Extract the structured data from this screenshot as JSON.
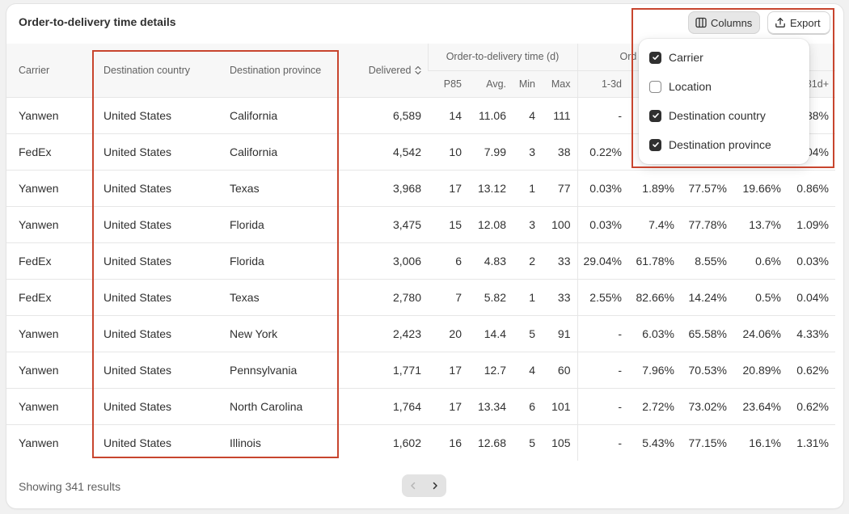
{
  "card": {
    "title": "Order-to-delivery time details"
  },
  "toolbar": {
    "columns_label": "Columns",
    "export_label": "Export"
  },
  "table": {
    "headers": {
      "carrier": "Carrier",
      "destination_country": "Destination country",
      "destination_province": "Destination province",
      "delivered": "Delivered",
      "o2d_group": "Order-to-delivery time (d)",
      "dist_group": "Ord",
      "p85": "P85",
      "avg": "Avg.",
      "min": "Min",
      "max": "Max",
      "b1": "1-3d",
      "b5": "31d+"
    },
    "rows": [
      [
        "Yanwen",
        "United States",
        "California",
        "6,589",
        "14",
        "11.06",
        "4",
        "111",
        "-",
        "",
        "",
        "",
        "38%"
      ],
      [
        "FedEx",
        "United States",
        "California",
        "4,542",
        "10",
        "7.99",
        "3",
        "38",
        "0.22%",
        "",
        "",
        "",
        "04%"
      ],
      [
        "Yanwen",
        "United States",
        "Texas",
        "3,968",
        "17",
        "13.12",
        "1",
        "77",
        "0.03%",
        "1.89%",
        "77.57%",
        "19.66%",
        "0.86%"
      ],
      [
        "Yanwen",
        "United States",
        "Florida",
        "3,475",
        "15",
        "12.08",
        "3",
        "100",
        "0.03%",
        "7.4%",
        "77.78%",
        "13.7%",
        "1.09%"
      ],
      [
        "FedEx",
        "United States",
        "Florida",
        "3,006",
        "6",
        "4.83",
        "2",
        "33",
        "29.04%",
        "61.78%",
        "8.55%",
        "0.6%",
        "0.03%"
      ],
      [
        "FedEx",
        "United States",
        "Texas",
        "2,780",
        "7",
        "5.82",
        "1",
        "33",
        "2.55%",
        "82.66%",
        "14.24%",
        "0.5%",
        "0.04%"
      ],
      [
        "Yanwen",
        "United States",
        "New York",
        "2,423",
        "20",
        "14.4",
        "5",
        "91",
        "-",
        "6.03%",
        "65.58%",
        "24.06%",
        "4.33%"
      ],
      [
        "Yanwen",
        "United States",
        "Pennsylvania",
        "1,771",
        "17",
        "12.7",
        "4",
        "60",
        "-",
        "7.96%",
        "70.53%",
        "20.89%",
        "0.62%"
      ],
      [
        "Yanwen",
        "United States",
        "North Carolina",
        "1,764",
        "17",
        "13.34",
        "6",
        "101",
        "-",
        "2.72%",
        "73.02%",
        "23.64%",
        "0.62%"
      ],
      [
        "Yanwen",
        "United States",
        "Illinois",
        "1,602",
        "16",
        "12.68",
        "5",
        "105",
        "-",
        "5.43%",
        "77.15%",
        "16.1%",
        "1.31%"
      ]
    ]
  },
  "footer": {
    "results_text": "Showing 341 results"
  },
  "columns_menu": {
    "options": [
      {
        "label": "Carrier",
        "checked": true
      },
      {
        "label": "Location",
        "checked": false
      },
      {
        "label": "Destination country",
        "checked": true
      },
      {
        "label": "Destination province",
        "checked": true
      }
    ]
  },
  "colors": {
    "highlight": "#c8452e",
    "checkbox_on": "#303030",
    "header_bg": "#f7f7f7"
  }
}
